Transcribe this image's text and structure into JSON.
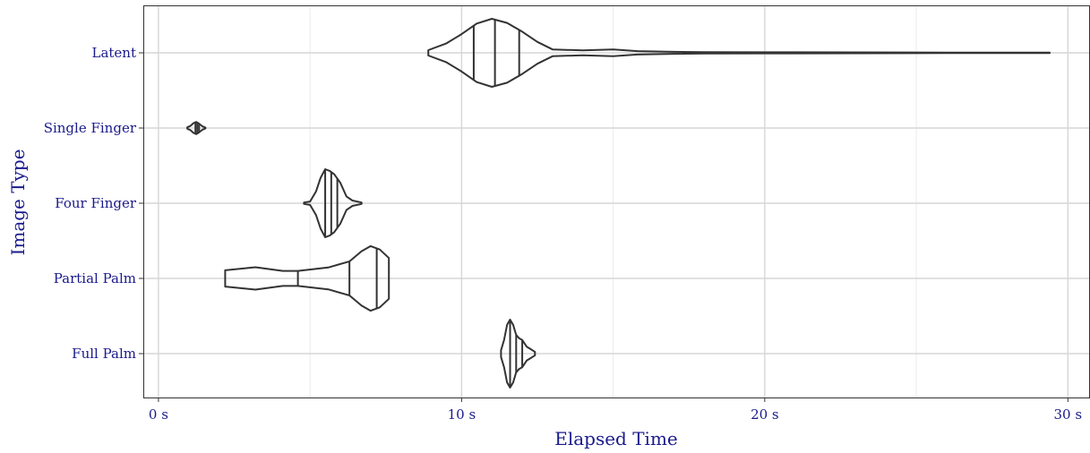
{
  "chart_data": {
    "type": "violin",
    "orientation": "horizontal",
    "xlabel": "Elapsed Time",
    "ylabel": "Image Type",
    "xlim": [
      -0.5,
      30.7
    ],
    "x_ticks": [
      {
        "value": 0,
        "label": "0 s"
      },
      {
        "value": 10,
        "label": "10 s"
      },
      {
        "value": 20,
        "label": "20 s"
      },
      {
        "value": 30,
        "label": "30 s"
      }
    ],
    "x_minor_ticks": [
      5,
      15,
      25
    ],
    "categories": [
      "Full Palm",
      "Partial Palm",
      "Four Finger",
      "Single Finger",
      "Latent"
    ],
    "grid": true,
    "series_color": "#333333",
    "label_color": "#1a1a8c",
    "violins": [
      {
        "category": "Full Palm",
        "quartiles": [
          11.6,
          11.8,
          12.0
        ],
        "profile": [
          [
            11.3,
            0.1
          ],
          [
            11.4,
            0.4
          ],
          [
            11.5,
            0.85
          ],
          [
            11.6,
            1.0
          ],
          [
            11.7,
            0.85
          ],
          [
            11.8,
            0.55
          ],
          [
            11.9,
            0.45
          ],
          [
            12.0,
            0.4
          ],
          [
            12.15,
            0.2
          ],
          [
            12.3,
            0.12
          ],
          [
            12.42,
            0.05
          ]
        ]
      },
      {
        "category": "Partial Palm",
        "quartiles": [
          4.6,
          6.3,
          7.2
        ],
        "profile": [
          [
            2.2,
            0.24
          ],
          [
            3.2,
            0.33
          ],
          [
            4.1,
            0.22
          ],
          [
            4.6,
            0.22
          ],
          [
            5.6,
            0.32
          ],
          [
            6.3,
            0.5
          ],
          [
            6.7,
            0.8
          ],
          [
            7.0,
            0.95
          ],
          [
            7.3,
            0.85
          ],
          [
            7.6,
            0.6
          ]
        ]
      },
      {
        "category": "Four Finger",
        "quartiles": [
          5.5,
          5.7,
          5.9
        ],
        "profile": [
          [
            4.8,
            0.02
          ],
          [
            5.0,
            0.05
          ],
          [
            5.2,
            0.35
          ],
          [
            5.35,
            0.75
          ],
          [
            5.5,
            1.0
          ],
          [
            5.65,
            0.95
          ],
          [
            5.8,
            0.85
          ],
          [
            6.0,
            0.6
          ],
          [
            6.2,
            0.2
          ],
          [
            6.4,
            0.08
          ],
          [
            6.7,
            0.02
          ]
        ]
      },
      {
        "category": "Single Finger",
        "quartiles": [
          1.22,
          1.28,
          1.34
        ],
        "profile": [
          [
            0.95,
            0.02
          ],
          [
            1.05,
            0.06
          ],
          [
            1.15,
            0.14
          ],
          [
            1.25,
            0.18
          ],
          [
            1.35,
            0.12
          ],
          [
            1.45,
            0.05
          ],
          [
            1.55,
            0.01
          ]
        ]
      },
      {
        "category": "Latent",
        "quartiles": [
          10.4,
          11.1,
          11.9
        ],
        "profile": [
          [
            8.9,
            0.08
          ],
          [
            9.5,
            0.28
          ],
          [
            10.0,
            0.55
          ],
          [
            10.5,
            0.86
          ],
          [
            11.0,
            1.0
          ],
          [
            11.5,
            0.88
          ],
          [
            12.0,
            0.62
          ],
          [
            12.5,
            0.32
          ],
          [
            13.0,
            0.1
          ],
          [
            14.0,
            0.07
          ],
          [
            15.0,
            0.1
          ],
          [
            15.8,
            0.05
          ],
          [
            17.0,
            0.03
          ],
          [
            18.0,
            0.02
          ],
          [
            20.0,
            0.015
          ],
          [
            23.0,
            0.012
          ],
          [
            26.0,
            0.008
          ],
          [
            29.4,
            0.005
          ]
        ]
      }
    ]
  }
}
